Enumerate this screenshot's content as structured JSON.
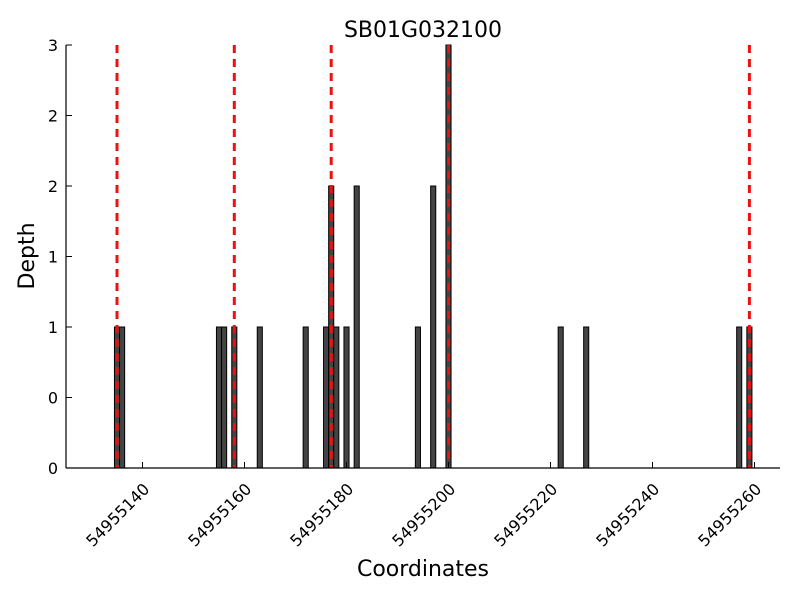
{
  "chart_data": {
    "type": "bar",
    "title": "SB01G032100",
    "xlabel": "Coordinates",
    "ylabel": "Depth",
    "xlim": [
      54955125,
      54955265
    ],
    "ylim": [
      0,
      3
    ],
    "x_ticks": [
      54955140,
      54955160,
      54955180,
      54955200,
      54955220,
      54955240,
      54955260
    ],
    "x_tick_labels": [
      "54955140",
      "54955160",
      "54955180",
      "54955200",
      "54955220",
      "54955240",
      "54955260"
    ],
    "y_ticks": [
      0,
      0.5,
      1,
      1.5,
      2,
      2.5,
      3
    ],
    "y_tick_labels": [
      "0",
      "0",
      "1",
      "1",
      "2",
      "2",
      "3"
    ],
    "bar_width": 1,
    "bar_color": "#444444",
    "reference_line_color": "#ee1111",
    "grid": false,
    "series": [
      {
        "x": [
          54955135,
          54955136,
          54955155,
          54955156,
          54955158,
          54955163,
          54955172,
          54955176,
          54955177,
          54955178,
          54955180,
          54955182,
          54955194,
          54955197,
          54955200,
          54955222,
          54955227,
          54955257,
          54955259
        ],
        "values": [
          1,
          1,
          1,
          1,
          1,
          1,
          1,
          1,
          2,
          1,
          1,
          2,
          1,
          2,
          3,
          1,
          1,
          1,
          1
        ]
      }
    ],
    "reference_lines": [
      54955135,
      54955158,
      54955177,
      54955200,
      54955259
    ]
  }
}
